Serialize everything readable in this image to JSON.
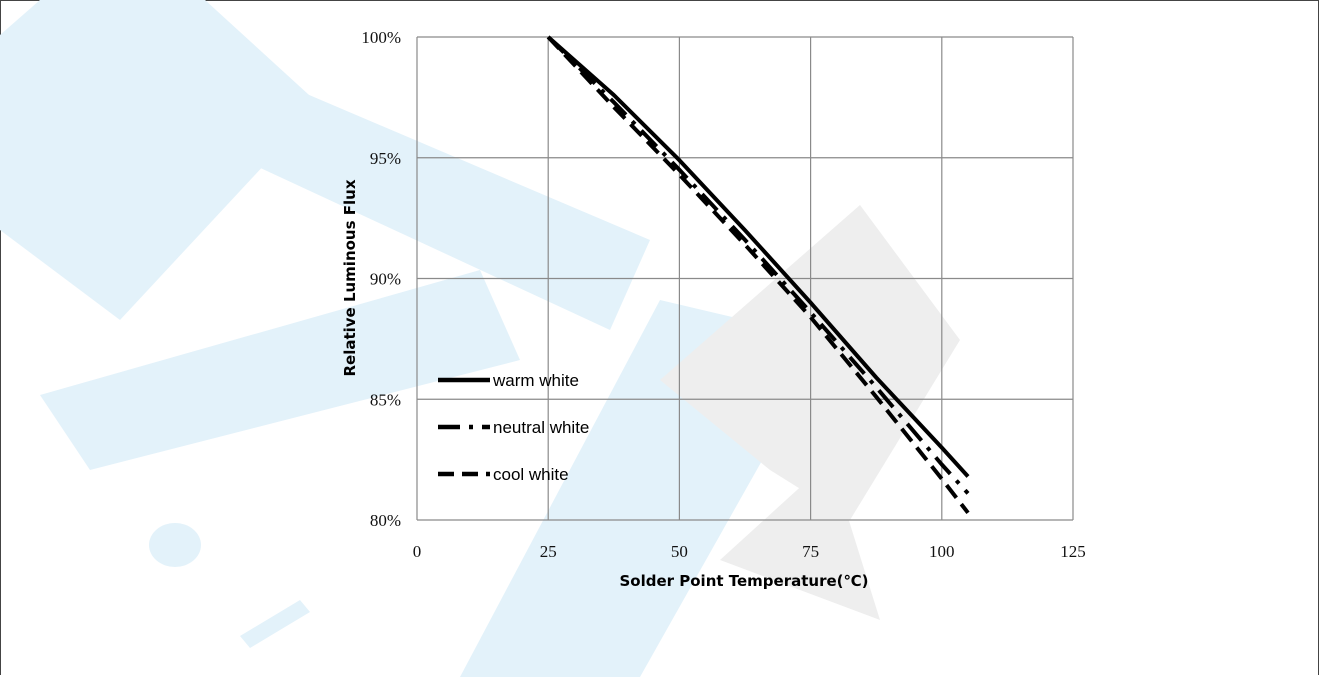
{
  "chart_data": {
    "type": "line",
    "xlabel": "Solder Point Temperature(℃)",
    "ylabel": "Relative Luminous Flux",
    "xlim": [
      0,
      125
    ],
    "ylim": [
      80,
      100
    ],
    "x_ticks": [
      "0",
      "25",
      "50",
      "75",
      "100",
      "125"
    ],
    "y_ticks": [
      "80%",
      "85%",
      "90%",
      "95%",
      "100%"
    ],
    "grid": true,
    "legend_position": "left",
    "series": [
      {
        "name": "warm white",
        "style": "solid",
        "x": [
          25,
          37.5,
          50,
          62.5,
          75,
          87.5,
          100,
          105
        ],
        "y": [
          100,
          97.6,
          94.9,
          92.0,
          89.0,
          85.9,
          83.0,
          81.8
        ]
      },
      {
        "name": "neutral white",
        "style": "dash-dot",
        "x": [
          25,
          37.5,
          50,
          62.5,
          75,
          87.5,
          100,
          105
        ],
        "y": [
          100,
          97.3,
          94.5,
          91.6,
          88.6,
          85.5,
          82.3,
          81.1
        ]
      },
      {
        "name": "cool white",
        "style": "dashed",
        "x": [
          25,
          37.5,
          50,
          62.5,
          75,
          87.5,
          100,
          105
        ],
        "y": [
          100,
          97.1,
          94.3,
          91.4,
          88.4,
          85.1,
          81.7,
          80.3
        ]
      }
    ]
  },
  "colors": {
    "line": "#000000",
    "grid": "#8a8a8a",
    "watermark_blue": "#e3f2fa",
    "watermark_gray": "#ececec"
  }
}
